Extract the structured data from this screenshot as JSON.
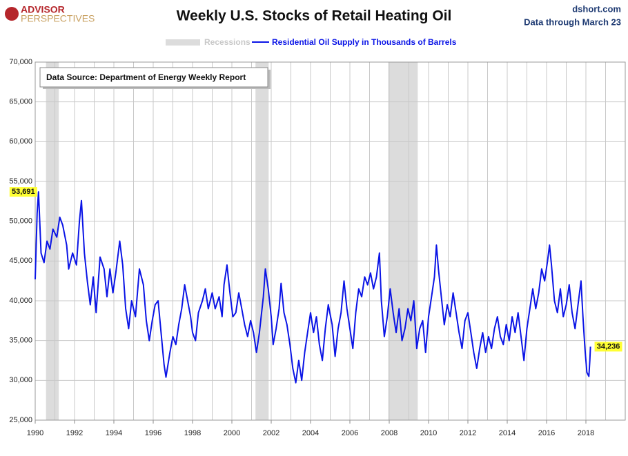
{
  "header": {
    "logo_top": "ADVISOR",
    "logo_bottom": "PERSPECTIVES",
    "site": "dshort.com",
    "note": "Data through March 23"
  },
  "chart_data": {
    "type": "line",
    "title": "Weekly U.S. Stocks of Retail Heating Oil",
    "source_box": "Data Source: Department of Energy Weekly Report",
    "recession_name": "Recessions",
    "recession_color": "#dcdcdc",
    "recessions": [
      {
        "start": 1990.55,
        "end": 1991.2
      },
      {
        "start": 2001.2,
        "end": 2001.87
      },
      {
        "start": 2007.95,
        "end": 2009.45
      }
    ],
    "xlim": [
      1990,
      2020
    ],
    "xticks": [
      1990,
      1992,
      1994,
      1996,
      1998,
      2000,
      2002,
      2004,
      2006,
      2008,
      2010,
      2012,
      2014,
      2016,
      2018
    ],
    "xminor": [
      1991,
      1993,
      1995,
      1997,
      1999,
      2001,
      2003,
      2005,
      2007,
      2009,
      2011,
      2013,
      2015,
      2017,
      2019
    ],
    "ylim": [
      25000,
      70000
    ],
    "yticks": [
      {
        "value": 25000,
        "label": "25,000"
      },
      {
        "value": 30000,
        "label": "30,000"
      },
      {
        "value": 35000,
        "label": "35,000"
      },
      {
        "value": 40000,
        "label": "40,000"
      },
      {
        "value": 45000,
        "label": "45,000"
      },
      {
        "value": 50000,
        "label": "50,000"
      },
      {
        "value": 55000,
        "label": "55,000"
      },
      {
        "value": 60000,
        "label": "60,000"
      },
      {
        "value": 65000,
        "label": "65,000"
      },
      {
        "value": 70000,
        "label": "70,000"
      }
    ],
    "grid": true,
    "annotations": [
      {
        "x": 1990.17,
        "value": 53691,
        "label": "53,691"
      },
      {
        "x": 2018.23,
        "value": 34236,
        "label": "34,236"
      }
    ],
    "x": [
      1990.0,
      1990.1,
      1990.17,
      1990.3,
      1990.45,
      1990.6,
      1990.75,
      1990.9,
      1991.1,
      1991.25,
      1991.4,
      1991.6,
      1991.7,
      1991.9,
      1992.1,
      1992.25,
      1992.35,
      1992.5,
      1992.65,
      1992.8,
      1992.95,
      1993.1,
      1993.3,
      1993.5,
      1993.65,
      1993.8,
      1993.95,
      1994.1,
      1994.3,
      1994.45,
      1994.6,
      1994.75,
      1994.9,
      1995.1,
      1995.3,
      1995.5,
      1995.65,
      1995.8,
      1995.95,
      1996.1,
      1996.25,
      1996.4,
      1996.55,
      1996.65,
      1996.85,
      1997.0,
      1997.15,
      1997.3,
      1997.45,
      1997.6,
      1997.75,
      1997.9,
      1998.0,
      1998.15,
      1998.3,
      1998.5,
      1998.65,
      1998.8,
      1999.0,
      1999.15,
      1999.35,
      1999.5,
      1999.6,
      1999.75,
      1999.9,
      2000.05,
      2000.2,
      2000.35,
      2000.5,
      2000.65,
      2000.8,
      2000.95,
      2001.1,
      2001.25,
      2001.4,
      2001.6,
      2001.7,
      2001.85,
      2002.0,
      2002.1,
      2002.25,
      2002.4,
      2002.5,
      2002.65,
      2002.8,
      2002.95,
      2003.1,
      2003.25,
      2003.4,
      2003.55,
      2003.7,
      2003.85,
      2004.0,
      2004.15,
      2004.3,
      2004.45,
      2004.6,
      2004.75,
      2004.9,
      2005.1,
      2005.25,
      2005.4,
      2005.55,
      2005.7,
      2005.85,
      2006.0,
      2006.15,
      2006.3,
      2006.45,
      2006.6,
      2006.75,
      2006.9,
      2007.05,
      2007.2,
      2007.35,
      2007.5,
      2007.6,
      2007.75,
      2007.9,
      2008.05,
      2008.2,
      2008.35,
      2008.5,
      2008.65,
      2008.8,
      2008.95,
      2009.1,
      2009.25,
      2009.4,
      2009.55,
      2009.7,
      2009.85,
      2010.0,
      2010.15,
      2010.3,
      2010.4,
      2010.5,
      2010.65,
      2010.8,
      2010.95,
      2011.1,
      2011.25,
      2011.4,
      2011.55,
      2011.7,
      2011.85,
      2012.0,
      2012.15,
      2012.3,
      2012.45,
      2012.6,
      2012.75,
      2012.9,
      2013.05,
      2013.2,
      2013.35,
      2013.5,
      2013.65,
      2013.8,
      2013.95,
      2014.1,
      2014.25,
      2014.4,
      2014.55,
      2014.7,
      2014.85,
      2015.0,
      2015.15,
      2015.3,
      2015.45,
      2015.6,
      2015.75,
      2015.9,
      2016.05,
      2016.15,
      2016.25,
      2016.4,
      2016.55,
      2016.7,
      2016.85,
      2017.0,
      2017.15,
      2017.3,
      2017.45,
      2017.6,
      2017.75,
      2017.85,
      2017.95,
      2018.05,
      2018.15,
      2018.2,
      2018.23
    ],
    "series": [
      {
        "name": "Residential Oil Supply in Thousands of Barrels",
        "color": "#0a14e6",
        "values": [
          42700,
          51000,
          53691,
          46000,
          44800,
          47500,
          46500,
          49000,
          48000,
          50500,
          49500,
          47000,
          44000,
          46000,
          44500,
          50000,
          52600,
          46000,
          42500,
          39500,
          43000,
          38500,
          45500,
          44000,
          40500,
          44000,
          41000,
          43500,
          47500,
          44500,
          39000,
          36500,
          40000,
          38000,
          44000,
          42000,
          37500,
          35000,
          37500,
          39500,
          40000,
          36000,
          32000,
          30400,
          33500,
          35500,
          34500,
          37000,
          39000,
          42000,
          40000,
          38000,
          36000,
          35000,
          38500,
          40000,
          41500,
          39000,
          41000,
          39000,
          40500,
          38000,
          42000,
          44500,
          41000,
          38000,
          38500,
          41000,
          39000,
          37000,
          35500,
          37500,
          36000,
          33500,
          36000,
          40500,
          44000,
          41500,
          38000,
          34500,
          36500,
          39000,
          42200,
          38500,
          37000,
          34500,
          31500,
          29700,
          32500,
          30000,
          33500,
          36000,
          38500,
          36000,
          38000,
          34500,
          32500,
          36500,
          39500,
          37000,
          33000,
          36500,
          38500,
          42500,
          39000,
          36500,
          34000,
          38500,
          41500,
          40500,
          43000,
          42000,
          43500,
          41500,
          43000,
          46000,
          40000,
          35500,
          38000,
          41500,
          38500,
          36000,
          39000,
          35000,
          36500,
          39000,
          37500,
          40000,
          34000,
          36500,
          37500,
          33500,
          38000,
          40500,
          43000,
          47000,
          44000,
          40500,
          37000,
          39500,
          38000,
          41000,
          38500,
          36000,
          34000,
          37500,
          38500,
          36000,
          33500,
          31500,
          34000,
          36000,
          33500,
          35500,
          34000,
          36500,
          38000,
          35500,
          34500,
          37000,
          35000,
          38000,
          36000,
          38500,
          35500,
          32500,
          36500,
          39000,
          41500,
          39000,
          41000,
          44000,
          42500,
          45000,
          47000,
          44500,
          40000,
          38500,
          41500,
          38000,
          39500,
          42000,
          38500,
          36500,
          39500,
          42500,
          38000,
          34000,
          31000,
          30500,
          32500,
          34236
        ]
      }
    ]
  }
}
